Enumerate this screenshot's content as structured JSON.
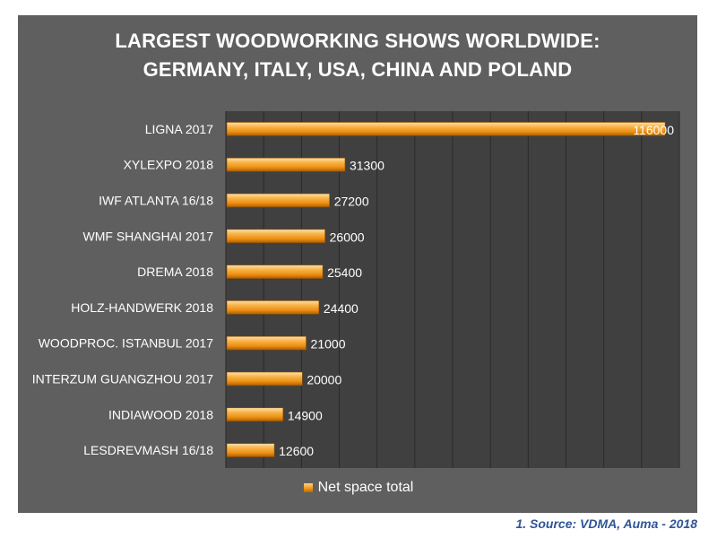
{
  "chart_data": {
    "type": "bar",
    "orientation": "horizontal",
    "title_lines": [
      "LARGEST WOODWORKING SHOWS WORLDWIDE:",
      "GERMANY, ITALY, USA, CHINA AND POLAND"
    ],
    "categories": [
      "LIGNA 2017",
      "XYLEXPO 2018",
      "IWF ATLANTA 16/18",
      "WMF SHANGHAI 2017",
      "DREMA 2018",
      "HOLZ-HANDWERK 2018",
      "WOODPROC. ISTANBUL 2017",
      "INTERZUM GUANGZHOU 2017",
      "INDIAWOOD 2018",
      "LESDREVMASH 16/18"
    ],
    "series": [
      {
        "name": "Net space total",
        "values": [
          116000,
          31300,
          27200,
          26000,
          25400,
          24400,
          21000,
          20000,
          14900,
          12600
        ]
      }
    ],
    "xlim": [
      0,
      120000
    ],
    "grid": "vertical",
    "legend_position": "bottom",
    "bar_color": "#f29a16",
    "plot_background": "#404040",
    "panel_background": "#5f5f5f"
  },
  "source_note": "1. Source: VDMA, Auma - 2018"
}
